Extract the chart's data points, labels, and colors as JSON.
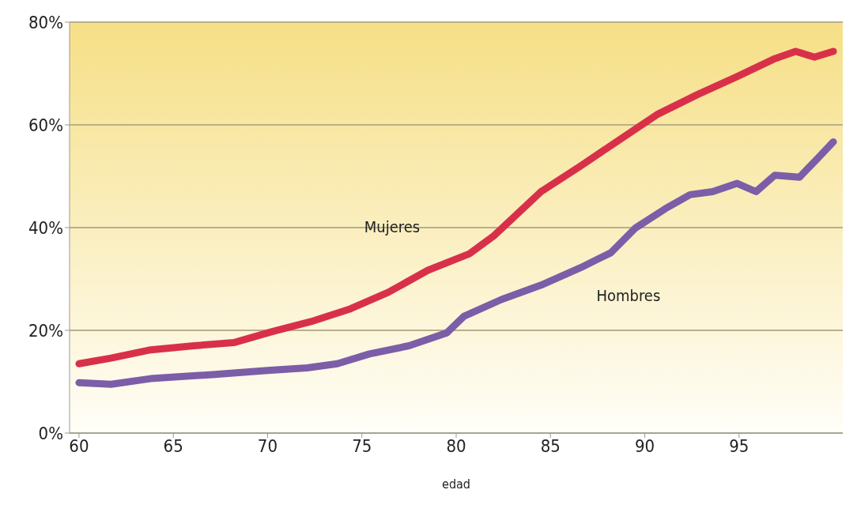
{
  "chart_data": {
    "type": "line",
    "xlabel": "edad",
    "xlim": [
      59.5,
      100.5
    ],
    "xticks": [
      60,
      65,
      70,
      75,
      80,
      85,
      90,
      95
    ],
    "ylim": [
      0,
      80
    ],
    "yticks": [
      {
        "value": 0,
        "label": "0%"
      },
      {
        "value": 20,
        "label": "20%"
      },
      {
        "value": 40,
        "label": "40%"
      },
      {
        "value": 60,
        "label": "60%"
      },
      {
        "value": 80,
        "label": "80%"
      }
    ],
    "grid": "y",
    "legend": false,
    "marker": "none",
    "line_style": "solid",
    "series": [
      {
        "name": "Mujeres",
        "color": "#d9304a",
        "x": [
          60,
          61.7,
          63.8,
          66.1,
          68.2,
          70.2,
          72.3,
          74.4,
          76.4,
          78.5,
          80.7,
          82.0,
          84.5,
          86.6,
          88.7,
          90.7,
          92.8,
          94.9,
          96.9,
          98.0,
          99.0,
          100
        ],
        "values": [
          13.5,
          14.6,
          16.2,
          17,
          17.6,
          19.7,
          21.7,
          24.2,
          27.4,
          31.7,
          34.9,
          38.4,
          47,
          52,
          57.2,
          62.1,
          65.9,
          69.4,
          72.9,
          74.3,
          73.2,
          74.3
        ]
      },
      {
        "name": "Hombres",
        "color": "#7b5ea7",
        "x": [
          60,
          61.7,
          63.8,
          67.1,
          70.0,
          72.1,
          73.7,
          75.4,
          77.5,
          79.5,
          80.4,
          82.4,
          84.5,
          86.6,
          88.2,
          89.5,
          91.1,
          92.4,
          93.6,
          94.9,
          95.9,
          96.9,
          98.2,
          99.2,
          100
        ],
        "values": [
          9.8,
          9.5,
          10.6,
          11.4,
          12.2,
          12.7,
          13.5,
          15.4,
          17,
          19.5,
          22.7,
          26,
          28.8,
          32.2,
          35.1,
          39.9,
          43.7,
          46.4,
          47,
          48.6,
          47,
          50.2,
          49.8,
          53.6,
          56.7
        ]
      }
    ]
  }
}
